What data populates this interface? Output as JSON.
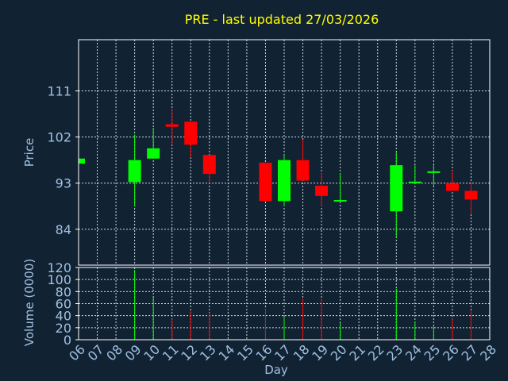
{
  "chart_data": {
    "type": "candlestick",
    "title": "PRE - last updated 27/03/2026",
    "xlabel": "Day",
    "price_panel": {
      "ylabel": "Price",
      "yticks": [
        84,
        93,
        102,
        111
      ],
      "ylim": [
        77,
        121
      ]
    },
    "volume_panel": {
      "ylabel": "Volume (0000)",
      "yticks": [
        0,
        20,
        40,
        60,
        80,
        100,
        120
      ],
      "ylim": [
        0,
        120
      ]
    },
    "x_tick_labels": [
      "06",
      "07",
      "08",
      "09",
      "10",
      "11",
      "12",
      "13",
      "14",
      "15",
      "16",
      "17",
      "18",
      "19",
      "20",
      "21",
      "22",
      "23",
      "24",
      "25",
      "26",
      "27",
      "28"
    ],
    "grid": true,
    "colors": {
      "up": "#00ff00",
      "down": "#ff0000",
      "background": "#112233",
      "title": "#ffff00",
      "axis_text": "#a0c0e0"
    },
    "candles": [
      {
        "day": "06",
        "open": 96.8,
        "close": 97.8,
        "high": 97.8,
        "low": 96.8,
        "volume": 0
      },
      {
        "day": "09",
        "open": 93.2,
        "close": 97.5,
        "high": 102.5,
        "low": 88.5,
        "volume": 116
      },
      {
        "day": "10",
        "open": 97.8,
        "close": 99.8,
        "high": 103.8,
        "low": 97.8,
        "volume": 70
      },
      {
        "day": "11",
        "open": 104.5,
        "close": 104.0,
        "high": 107.5,
        "low": 100.5,
        "volume": 35
      },
      {
        "day": "12",
        "open": 105.0,
        "close": 100.5,
        "high": 105.0,
        "low": 98.0,
        "volume": 48
      },
      {
        "day": "13",
        "open": 98.5,
        "close": 94.8,
        "high": 98.5,
        "low": 93.0,
        "volume": 45
      },
      {
        "day": "16",
        "open": 97.0,
        "close": 89.5,
        "high": 97.0,
        "low": 89.5,
        "volume": 52
      },
      {
        "day": "17",
        "open": 89.5,
        "close": 97.5,
        "high": 98.5,
        "low": 88.5,
        "volume": 38
      },
      {
        "day": "18",
        "open": 97.5,
        "close": 93.5,
        "high": 101.5,
        "low": 93.5,
        "volume": 68
      },
      {
        "day": "19",
        "open": 92.5,
        "close": 90.5,
        "high": 95.0,
        "low": 88.5,
        "volume": 68
      },
      {
        "day": "20",
        "open": 89.5,
        "close": 89.7,
        "high": 95.0,
        "low": 89.5,
        "volume": 28
      },
      {
        "day": "23",
        "open": 87.5,
        "close": 96.5,
        "high": 99.0,
        "low": 82.5,
        "volume": 85
      },
      {
        "day": "24",
        "open": 93.0,
        "close": 93.3,
        "high": 96.5,
        "low": 93.0,
        "volume": 30
      },
      {
        "day": "25",
        "open": 95.0,
        "close": 95.3,
        "high": 96.5,
        "low": 92.5,
        "volume": 22
      },
      {
        "day": "26",
        "open": 93.0,
        "close": 91.5,
        "high": 95.5,
        "low": 91.5,
        "volume": 35
      },
      {
        "day": "27",
        "open": 91.5,
        "close": 89.8,
        "high": 93.0,
        "low": 87.0,
        "volume": 48
      }
    ]
  }
}
